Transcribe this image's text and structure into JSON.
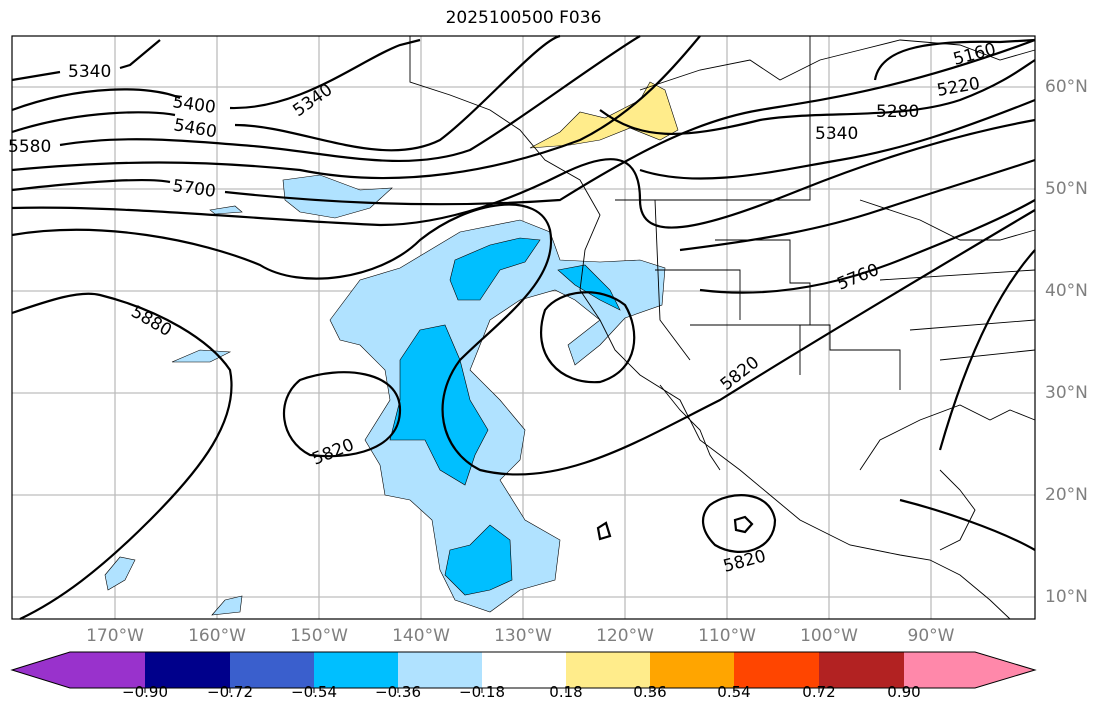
{
  "title": "2025100500 F036",
  "lon_labels": [
    "170°W",
    "160°W",
    "150°W",
    "140°W",
    "130°W",
    "120°W",
    "110°W",
    "100°W",
    "90°W"
  ],
  "lat_labels": [
    "60°N",
    "50°N",
    "40°N",
    "30°N",
    "20°N",
    "10°N"
  ],
  "contour_labels": [
    "5340",
    "5400",
    "5460",
    "5340",
    "5580",
    "5700",
    "5880",
    "5820",
    "5820",
    "5820",
    "5760",
    "5340",
    "5280",
    "5220",
    "5160"
  ],
  "colorbar": {
    "ticks": [
      "−0.90",
      "−0.72",
      "−0.54",
      "−0.36",
      "−0.18",
      "0.18",
      "0.36",
      "0.54",
      "0.72",
      "0.90"
    ],
    "colors": [
      "#9932cc",
      "#00008b",
      "#3a5fcd",
      "#00bfff",
      "#b0e2ff",
      "#ffffff",
      "#ffec8b",
      "#ffa500",
      "#ff4500",
      "#b22222",
      "#ff88aa"
    ]
  },
  "shading_colors": {
    "light_blue": "#b0e2ff",
    "sky_blue": "#00bfff",
    "yellow": "#ffec8b"
  }
}
